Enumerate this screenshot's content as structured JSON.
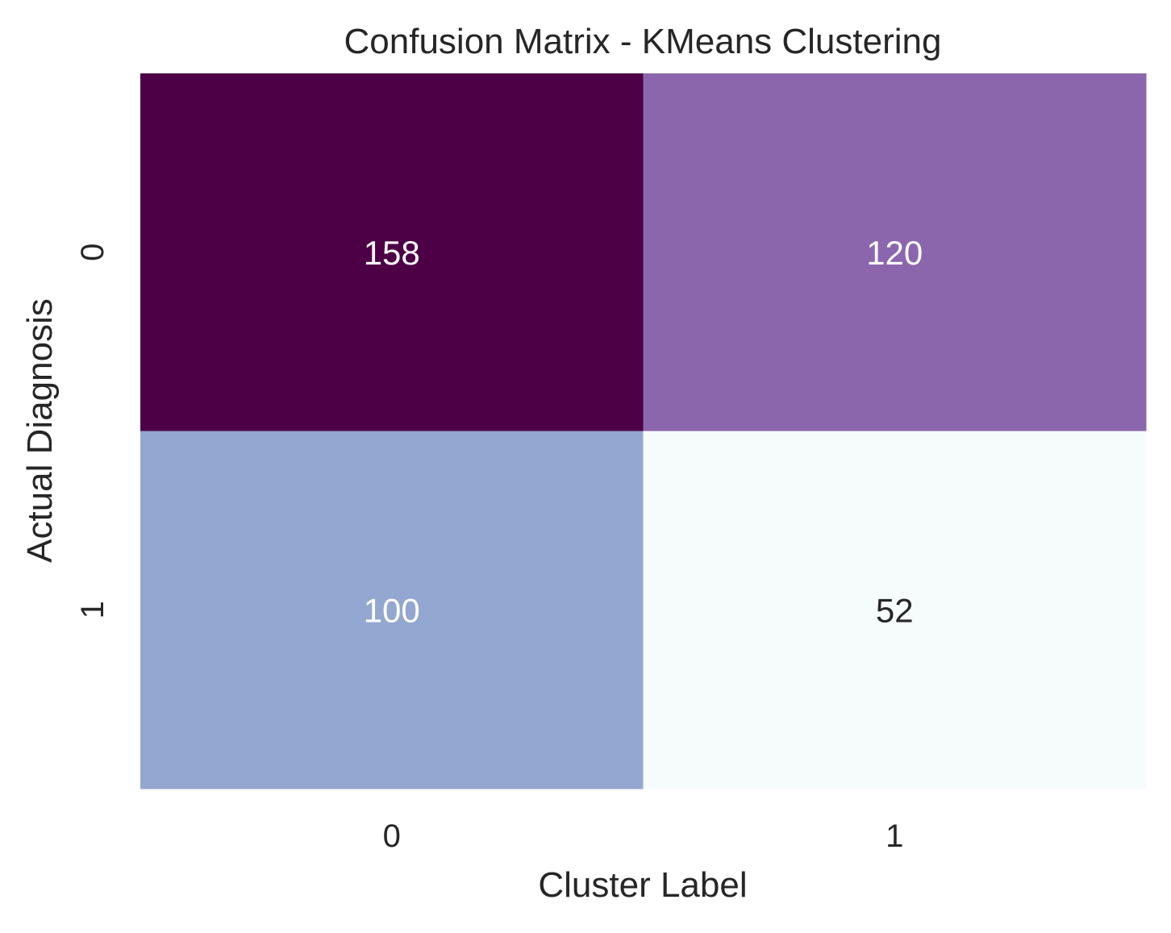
{
  "chart_data": {
    "type": "heatmap",
    "title": "Confusion Matrix - KMeans Clustering",
    "xlabel": "Cluster Label",
    "ylabel": "Actual Diagnosis",
    "x_categories": [
      "0",
      "1"
    ],
    "y_categories": [
      "0",
      "1"
    ],
    "values": [
      [
        158,
        120
      ],
      [
        100,
        52
      ]
    ],
    "colorbar": false,
    "grid": false,
    "cell_colors": [
      [
        "#4d0046",
        "#8c66ad"
      ],
      [
        "#93a7d0",
        "#f6fbfc"
      ]
    ],
    "annotation_colors": [
      [
        "#ffffff",
        "#ffffff"
      ],
      [
        "#ffffff",
        "#262626"
      ]
    ]
  }
}
